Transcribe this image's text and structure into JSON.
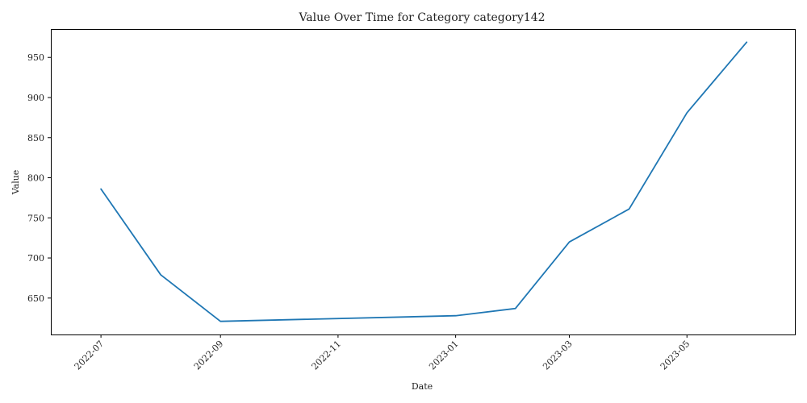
{
  "chart_data": {
    "type": "line",
    "title": "Value Over Time for Category category142",
    "xlabel": "Date",
    "ylabel": "Value",
    "x": [
      "2022-07-01",
      "2022-08-01",
      "2022-09-01",
      "2023-01-01",
      "2023-02-01",
      "2023-03-01",
      "2023-04-01",
      "2023-05-01",
      "2023-06-01"
    ],
    "series": [
      {
        "values": [
          786,
          679,
          621,
          628,
          637,
          720,
          761,
          881,
          969
        ]
      }
    ],
    "x_ticks": [
      "2022-07",
      "2022-09",
      "2022-11",
      "2023-01",
      "2023-03",
      "2023-05"
    ],
    "y_ticks": [
      650,
      700,
      750,
      800,
      850,
      900,
      950
    ],
    "xlim": [
      "2022-06-05",
      "2023-06-26"
    ],
    "ylim": [
      604.6,
      985.4
    ],
    "grid": false,
    "colors": {
      "line": "#1f77b4"
    }
  }
}
